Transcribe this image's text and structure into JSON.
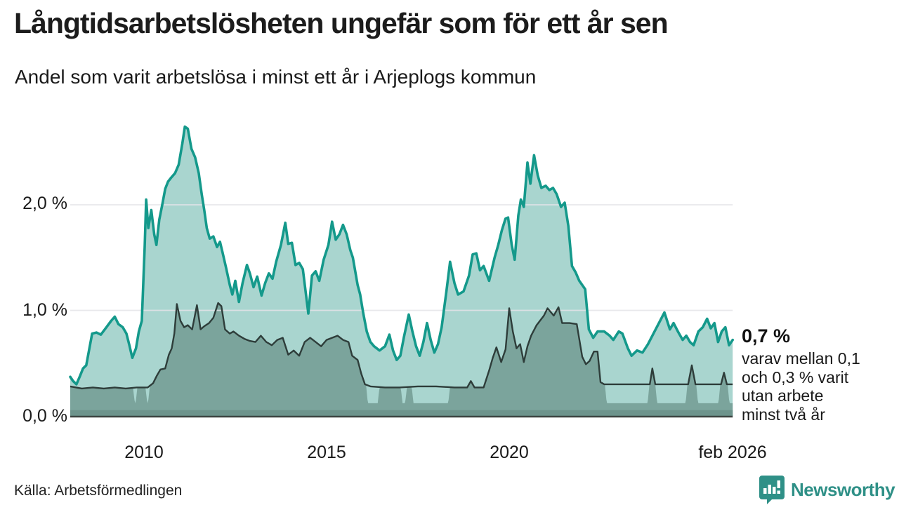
{
  "header": {
    "title": "Långtidsarbetslösheten ungefär som för ett år sen",
    "subtitle": "Andel som varit arbetslösa i minst ett år i Arjeplogs kommun"
  },
  "footer": {
    "source": "Källa: Arbetsförmedlingen",
    "brand": "Newsworthy"
  },
  "colors": {
    "accent_teal": "#14998b",
    "fill_light": "#a9d5cf",
    "fill_dark": "#7ba49c",
    "bottom_band": "#6d948c",
    "line_dark": "#2e3d3a",
    "grid": "#e4e4e8",
    "axis": "#3c4441",
    "brand_teal": "#2f9087"
  },
  "chart_data": {
    "type": "area",
    "unit": "%",
    "grid": "horizontal",
    "legend_position": "none",
    "x_axis": {
      "range_years": [
        2007.98,
        2026.17
      ],
      "ticks": [
        {
          "label": "2010",
          "year": 2010
        },
        {
          "label": "2015",
          "year": 2015
        },
        {
          "label": "2020",
          "year": 2020
        },
        {
          "label": "feb 2026",
          "year": 2026.08
        }
      ]
    },
    "y_axis": {
      "min": 0,
      "max": 2.85,
      "ticks": [
        {
          "label": "2,0 %",
          "value": 2
        },
        {
          "label": "1,0 %",
          "value": 1
        },
        {
          "label": "0,0 %",
          "value": 0
        }
      ]
    },
    "annotation": {
      "value": "0,7 %",
      "lines": [
        "varav mellan 0,1",
        "och 0,3 % varit",
        "utan arbete",
        "minst två år"
      ]
    },
    "bottom_band": {
      "from": 0,
      "to": 0.055
    },
    "series": [
      {
        "name": "Arbetslösa minst ett år",
        "last_value": 0.7,
        "points": [
          [
            2007.98,
            0.37
          ],
          [
            2008.06,
            0.33
          ],
          [
            2008.15,
            0.3
          ],
          [
            2008.25,
            0.38
          ],
          [
            2008.33,
            0.45
          ],
          [
            2008.42,
            0.48
          ],
          [
            2008.5,
            0.63
          ],
          [
            2008.58,
            0.78
          ],
          [
            2008.7,
            0.79
          ],
          [
            2008.82,
            0.77
          ],
          [
            2008.95,
            0.83
          ],
          [
            2009.1,
            0.9
          ],
          [
            2009.2,
            0.94
          ],
          [
            2009.3,
            0.87
          ],
          [
            2009.42,
            0.84
          ],
          [
            2009.52,
            0.78
          ],
          [
            2009.6,
            0.67
          ],
          [
            2009.68,
            0.55
          ],
          [
            2009.78,
            0.64
          ],
          [
            2009.86,
            0.8
          ],
          [
            2009.94,
            0.9
          ],
          [
            2010.02,
            1.6
          ],
          [
            2010.06,
            2.05
          ],
          [
            2010.12,
            1.78
          ],
          [
            2010.2,
            1.95
          ],
          [
            2010.28,
            1.72
          ],
          [
            2010.34,
            1.62
          ],
          [
            2010.42,
            1.86
          ],
          [
            2010.5,
            2.0
          ],
          [
            2010.58,
            2.15
          ],
          [
            2010.66,
            2.22
          ],
          [
            2010.75,
            2.26
          ],
          [
            2010.85,
            2.3
          ],
          [
            2010.95,
            2.38
          ],
          [
            2011.05,
            2.58
          ],
          [
            2011.12,
            2.74
          ],
          [
            2011.2,
            2.72
          ],
          [
            2011.3,
            2.53
          ],
          [
            2011.4,
            2.45
          ],
          [
            2011.5,
            2.3
          ],
          [
            2011.58,
            2.1
          ],
          [
            2011.65,
            1.95
          ],
          [
            2011.72,
            1.78
          ],
          [
            2011.8,
            1.68
          ],
          [
            2011.9,
            1.7
          ],
          [
            2012.0,
            1.6
          ],
          [
            2012.08,
            1.65
          ],
          [
            2012.15,
            1.55
          ],
          [
            2012.25,
            1.4
          ],
          [
            2012.35,
            1.24
          ],
          [
            2012.42,
            1.15
          ],
          [
            2012.5,
            1.28
          ],
          [
            2012.6,
            1.08
          ],
          [
            2012.7,
            1.26
          ],
          [
            2012.82,
            1.43
          ],
          [
            2012.9,
            1.35
          ],
          [
            2013.0,
            1.22
          ],
          [
            2013.1,
            1.32
          ],
          [
            2013.22,
            1.14
          ],
          [
            2013.32,
            1.26
          ],
          [
            2013.42,
            1.35
          ],
          [
            2013.52,
            1.3
          ],
          [
            2013.62,
            1.46
          ],
          [
            2013.75,
            1.62
          ],
          [
            2013.87,
            1.83
          ],
          [
            2013.95,
            1.63
          ],
          [
            2014.05,
            1.64
          ],
          [
            2014.15,
            1.43
          ],
          [
            2014.25,
            1.45
          ],
          [
            2014.35,
            1.39
          ],
          [
            2014.5,
            0.97
          ],
          [
            2014.6,
            1.33
          ],
          [
            2014.7,
            1.37
          ],
          [
            2014.8,
            1.28
          ],
          [
            2014.92,
            1.48
          ],
          [
            2015.05,
            1.62
          ],
          [
            2015.15,
            1.84
          ],
          [
            2015.25,
            1.67
          ],
          [
            2015.35,
            1.72
          ],
          [
            2015.45,
            1.81
          ],
          [
            2015.55,
            1.72
          ],
          [
            2015.65,
            1.57
          ],
          [
            2015.72,
            1.5
          ],
          [
            2015.85,
            1.24
          ],
          [
            2015.92,
            1.15
          ],
          [
            2016.0,
            0.98
          ],
          [
            2016.1,
            0.8
          ],
          [
            2016.2,
            0.7
          ],
          [
            2016.3,
            0.66
          ],
          [
            2016.45,
            0.62
          ],
          [
            2016.6,
            0.66
          ],
          [
            2016.72,
            0.77
          ],
          [
            2016.82,
            0.62
          ],
          [
            2016.92,
            0.53
          ],
          [
            2017.02,
            0.57
          ],
          [
            2017.12,
            0.75
          ],
          [
            2017.25,
            0.96
          ],
          [
            2017.35,
            0.8
          ],
          [
            2017.45,
            0.66
          ],
          [
            2017.55,
            0.57
          ],
          [
            2017.65,
            0.7
          ],
          [
            2017.75,
            0.88
          ],
          [
            2017.85,
            0.72
          ],
          [
            2017.95,
            0.6
          ],
          [
            2018.05,
            0.68
          ],
          [
            2018.15,
            0.84
          ],
          [
            2018.28,
            1.18
          ],
          [
            2018.38,
            1.46
          ],
          [
            2018.5,
            1.26
          ],
          [
            2018.6,
            1.15
          ],
          [
            2018.75,
            1.18
          ],
          [
            2018.9,
            1.33
          ],
          [
            2019.0,
            1.53
          ],
          [
            2019.1,
            1.54
          ],
          [
            2019.2,
            1.38
          ],
          [
            2019.3,
            1.42
          ],
          [
            2019.45,
            1.28
          ],
          [
            2019.6,
            1.5
          ],
          [
            2019.7,
            1.62
          ],
          [
            2019.8,
            1.76
          ],
          [
            2019.9,
            1.87
          ],
          [
            2019.97,
            1.88
          ],
          [
            2020.07,
            1.62
          ],
          [
            2020.15,
            1.48
          ],
          [
            2020.25,
            1.9
          ],
          [
            2020.32,
            2.05
          ],
          [
            2020.4,
            1.98
          ],
          [
            2020.5,
            2.4
          ],
          [
            2020.58,
            2.2
          ],
          [
            2020.68,
            2.47
          ],
          [
            2020.78,
            2.28
          ],
          [
            2020.88,
            2.16
          ],
          [
            2021.0,
            2.18
          ],
          [
            2021.1,
            2.14
          ],
          [
            2021.2,
            2.16
          ],
          [
            2021.3,
            2.1
          ],
          [
            2021.42,
            1.98
          ],
          [
            2021.52,
            2.02
          ],
          [
            2021.62,
            1.8
          ],
          [
            2021.72,
            1.42
          ],
          [
            2021.82,
            1.36
          ],
          [
            2021.92,
            1.28
          ],
          [
            2022.0,
            1.24
          ],
          [
            2022.08,
            1.2
          ],
          [
            2022.18,
            0.82
          ],
          [
            2022.3,
            0.74
          ],
          [
            2022.42,
            0.8
          ],
          [
            2022.6,
            0.8
          ],
          [
            2022.75,
            0.76
          ],
          [
            2022.85,
            0.72
          ],
          [
            2023.0,
            0.8
          ],
          [
            2023.1,
            0.78
          ],
          [
            2023.25,
            0.64
          ],
          [
            2023.35,
            0.57
          ],
          [
            2023.5,
            0.62
          ],
          [
            2023.65,
            0.6
          ],
          [
            2023.8,
            0.68
          ],
          [
            2023.95,
            0.78
          ],
          [
            2024.1,
            0.88
          ],
          [
            2024.25,
            0.98
          ],
          [
            2024.4,
            0.82
          ],
          [
            2024.5,
            0.88
          ],
          [
            2024.62,
            0.8
          ],
          [
            2024.75,
            0.72
          ],
          [
            2024.85,
            0.76
          ],
          [
            2024.95,
            0.7
          ],
          [
            2025.05,
            0.67
          ],
          [
            2025.18,
            0.8
          ],
          [
            2025.3,
            0.84
          ],
          [
            2025.42,
            0.92
          ],
          [
            2025.52,
            0.83
          ],
          [
            2025.62,
            0.88
          ],
          [
            2025.72,
            0.7
          ],
          [
            2025.82,
            0.8
          ],
          [
            2025.92,
            0.84
          ],
          [
            2026.02,
            0.67
          ],
          [
            2026.12,
            0.72
          ]
        ]
      },
      {
        "name": "Arbetslösa minst två år",
        "last_value_range": [
          0.1,
          0.3
        ],
        "censored_floor": 0.12,
        "censored_ranges": [
          [
            2009.7,
            2009.82
          ],
          [
            2010.04,
            2010.16
          ],
          [
            2016.08,
            2016.45
          ],
          [
            2017.03,
            2017.2
          ],
          [
            2017.33,
            2018.38
          ],
          [
            2022.62,
            2023.84
          ],
          [
            2024.0,
            2024.88
          ],
          [
            2025.12,
            2025.78
          ],
          [
            2025.98,
            2026.17
          ]
        ],
        "points": [
          [
            2007.98,
            0.28
          ],
          [
            2008.3,
            0.26
          ],
          [
            2008.6,
            0.27
          ],
          [
            2008.9,
            0.26
          ],
          [
            2009.2,
            0.27
          ],
          [
            2009.5,
            0.26
          ],
          [
            2009.8,
            0.27
          ],
          [
            2010.1,
            0.27
          ],
          [
            2010.25,
            0.31
          ],
          [
            2010.35,
            0.38
          ],
          [
            2010.45,
            0.44
          ],
          [
            2010.58,
            0.45
          ],
          [
            2010.68,
            0.58
          ],
          [
            2010.76,
            0.64
          ],
          [
            2010.83,
            0.78
          ],
          [
            2010.9,
            1.06
          ],
          [
            2011.0,
            0.9
          ],
          [
            2011.1,
            0.84
          ],
          [
            2011.2,
            0.86
          ],
          [
            2011.32,
            0.82
          ],
          [
            2011.45,
            1.05
          ],
          [
            2011.55,
            0.82
          ],
          [
            2011.65,
            0.85
          ],
          [
            2011.78,
            0.88
          ],
          [
            2011.9,
            0.93
          ],
          [
            2012.03,
            1.07
          ],
          [
            2012.12,
            1.04
          ],
          [
            2012.22,
            0.82
          ],
          [
            2012.35,
            0.78
          ],
          [
            2012.45,
            0.8
          ],
          [
            2012.6,
            0.76
          ],
          [
            2012.75,
            0.73
          ],
          [
            2012.9,
            0.71
          ],
          [
            2013.05,
            0.7
          ],
          [
            2013.2,
            0.76
          ],
          [
            2013.35,
            0.7
          ],
          [
            2013.5,
            0.67
          ],
          [
            2013.65,
            0.72
          ],
          [
            2013.8,
            0.74
          ],
          [
            2013.95,
            0.58
          ],
          [
            2014.1,
            0.62
          ],
          [
            2014.25,
            0.57
          ],
          [
            2014.4,
            0.7
          ],
          [
            2014.55,
            0.74
          ],
          [
            2014.7,
            0.7
          ],
          [
            2014.85,
            0.66
          ],
          [
            2015.0,
            0.72
          ],
          [
            2015.15,
            0.74
          ],
          [
            2015.3,
            0.76
          ],
          [
            2015.45,
            0.72
          ],
          [
            2015.6,
            0.7
          ],
          [
            2015.7,
            0.57
          ],
          [
            2015.85,
            0.53
          ],
          [
            2015.95,
            0.4
          ],
          [
            2016.05,
            0.3
          ],
          [
            2016.2,
            0.28
          ],
          [
            2016.6,
            0.27
          ],
          [
            2017.0,
            0.27
          ],
          [
            2017.5,
            0.28
          ],
          [
            2018.0,
            0.28
          ],
          [
            2018.5,
            0.27
          ],
          [
            2018.85,
            0.27
          ],
          [
            2018.95,
            0.33
          ],
          [
            2019.05,
            0.27
          ],
          [
            2019.3,
            0.27
          ],
          [
            2019.45,
            0.43
          ],
          [
            2019.55,
            0.55
          ],
          [
            2019.65,
            0.65
          ],
          [
            2019.78,
            0.51
          ],
          [
            2019.9,
            0.63
          ],
          [
            2020.0,
            1.02
          ],
          [
            2020.1,
            0.8
          ],
          [
            2020.2,
            0.64
          ],
          [
            2020.3,
            0.68
          ],
          [
            2020.4,
            0.51
          ],
          [
            2020.5,
            0.66
          ],
          [
            2020.6,
            0.76
          ],
          [
            2020.75,
            0.86
          ],
          [
            2020.95,
            0.95
          ],
          [
            2021.05,
            1.02
          ],
          [
            2021.22,
            0.95
          ],
          [
            2021.35,
            1.03
          ],
          [
            2021.45,
            0.88
          ],
          [
            2021.65,
            0.88
          ],
          [
            2021.85,
            0.87
          ],
          [
            2022.0,
            0.56
          ],
          [
            2022.1,
            0.49
          ],
          [
            2022.2,
            0.52
          ],
          [
            2022.32,
            0.61
          ],
          [
            2022.42,
            0.61
          ],
          [
            2022.5,
            0.32
          ],
          [
            2022.6,
            0.3
          ],
          [
            2023.0,
            0.3
          ],
          [
            2023.85,
            0.3
          ],
          [
            2023.92,
            0.45
          ],
          [
            2024.0,
            0.3
          ],
          [
            2024.9,
            0.3
          ],
          [
            2025.0,
            0.48
          ],
          [
            2025.1,
            0.3
          ],
          [
            2025.8,
            0.3
          ],
          [
            2025.88,
            0.41
          ],
          [
            2025.96,
            0.3
          ],
          [
            2026.12,
            0.3
          ]
        ]
      }
    ]
  }
}
